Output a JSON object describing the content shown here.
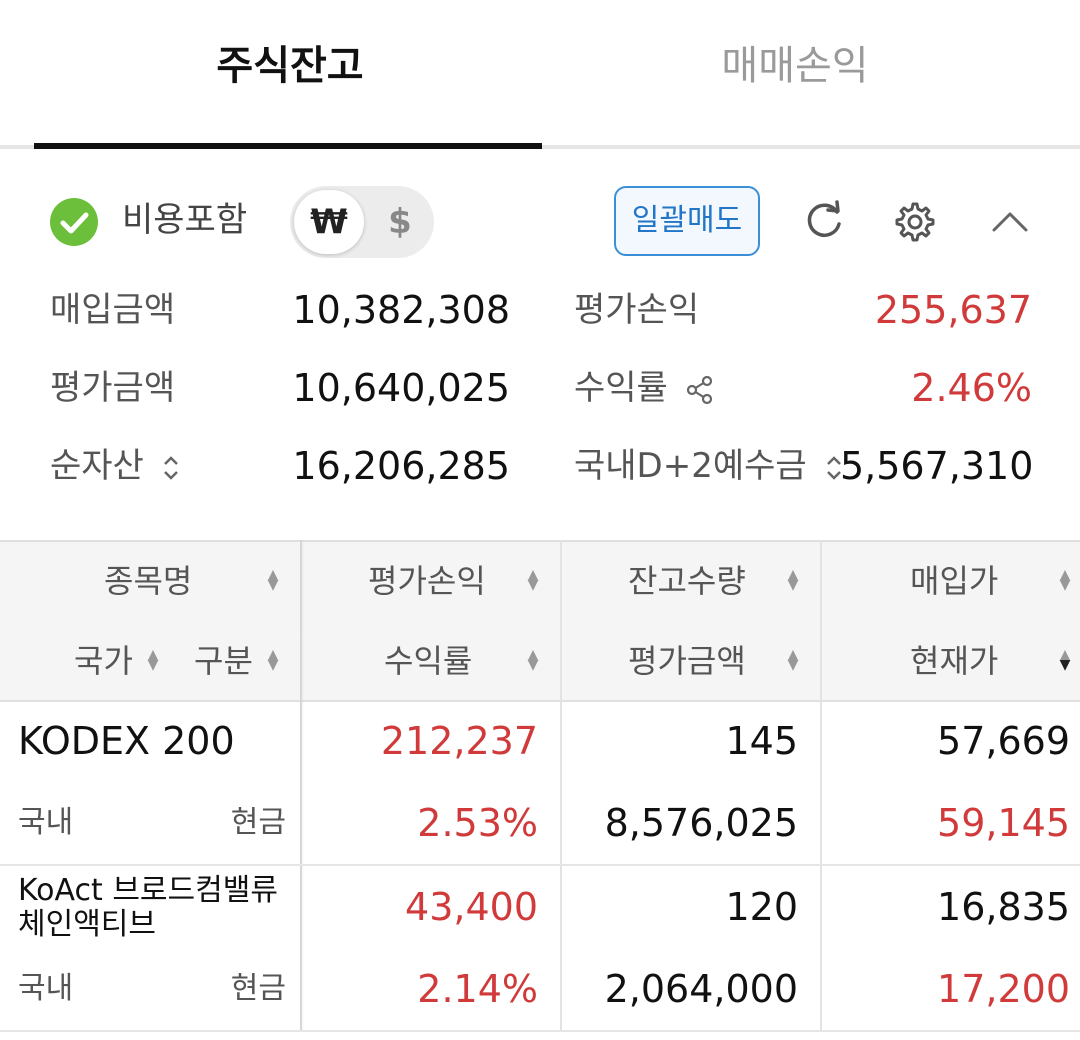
{
  "tabs": [
    {
      "label": "주식잔고",
      "active": true
    },
    {
      "label": "매매손익",
      "active": false
    }
  ],
  "toolbar": {
    "include_fees_label": "비용포함",
    "currency_won": "₩",
    "currency_usd": "$",
    "bulk_sell_label": "일괄매도"
  },
  "summary": {
    "purchase_amount_label": "매입금액",
    "purchase_amount": "10,382,308",
    "eval_amount_label": "평가금액",
    "eval_amount": "10,640,025",
    "net_assets_label": "순자산",
    "net_assets": "16,206,285",
    "eval_pl_label": "평가손익",
    "eval_pl": "255,637",
    "return_rate_label": "수익률",
    "return_rate": "2.46%",
    "deposit_label": "국내D+2예수금",
    "deposit": "5,567,310"
  },
  "table": {
    "headers": {
      "name": "종목명",
      "country": "국가",
      "type": "구분",
      "eval_pl": "평가손익",
      "return_rate": "수익률",
      "qty": "잔고수량",
      "eval_amount": "평가금액",
      "buy_price": "매입가",
      "cur_price": "현재가"
    },
    "rows": [
      {
        "name": "KODEX 200",
        "country": "국내",
        "type": "현금",
        "eval_pl": "212,237",
        "return_rate": "2.53%",
        "qty": "145",
        "eval_amount": "8,576,025",
        "buy_price": "57,669",
        "cur_price": "59,145"
      },
      {
        "name_line1": "KoAct 브로드컴밸류",
        "name_line2": "체인액티브",
        "country": "국내",
        "type": "현금",
        "eval_pl": "43,400",
        "return_rate": "2.14%",
        "qty": "120",
        "eval_amount": "2,064,000",
        "buy_price": "16,835",
        "cur_price": "17,200"
      }
    ]
  },
  "colors": {
    "positive": "#d03a3a",
    "cash_label": "#4aa02c",
    "accent_blue": "#2176c7",
    "check_green": "#6bbf3a"
  }
}
